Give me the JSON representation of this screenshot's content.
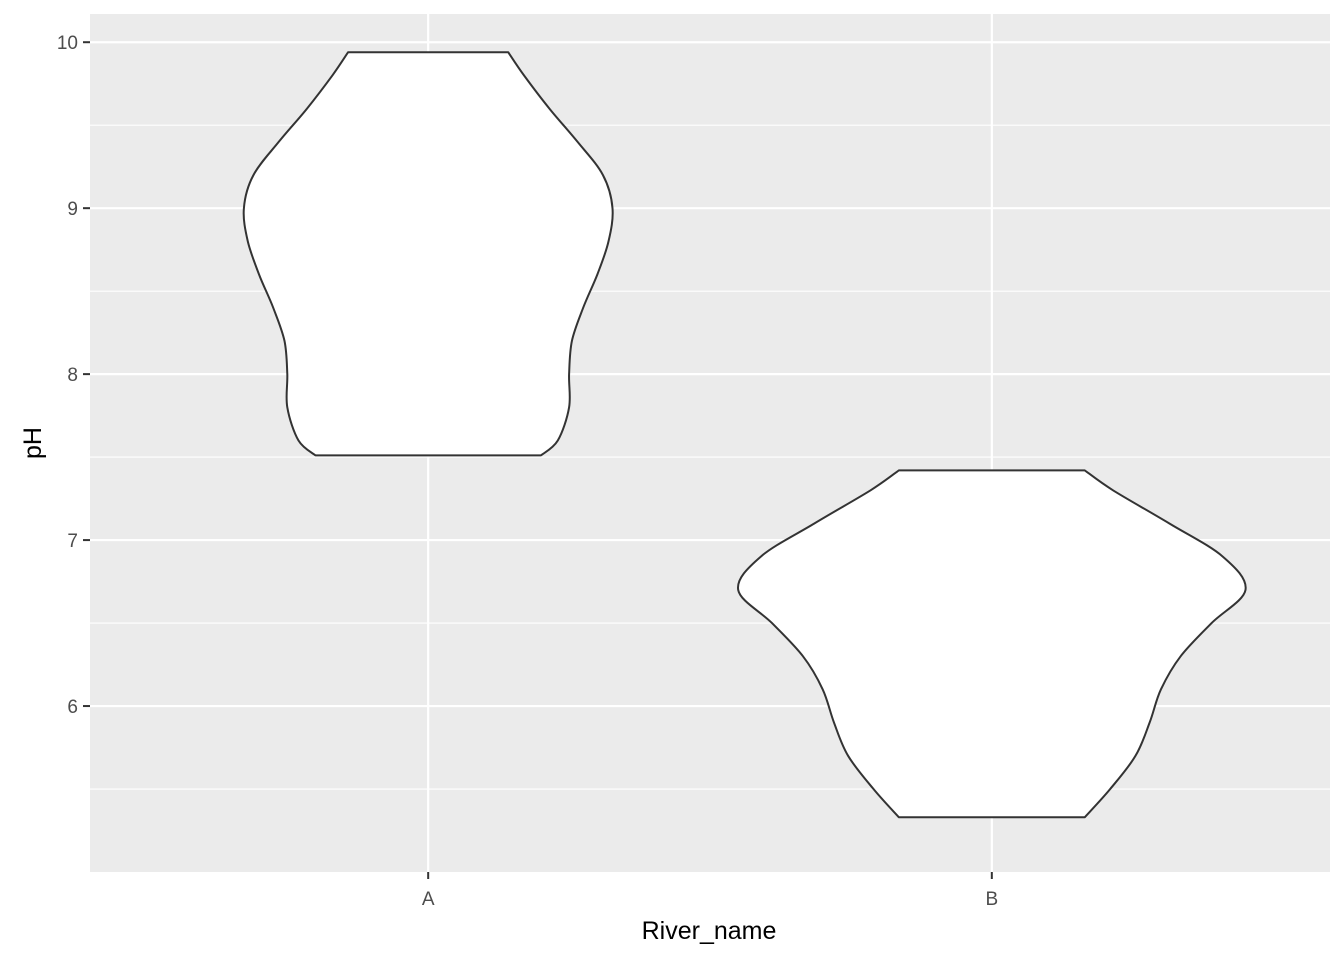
{
  "chart_data": {
    "type": "violin",
    "title": "",
    "xlabel": "River_name",
    "ylabel": "pH",
    "categories": [
      "A",
      "B"
    ],
    "ylim": [
      5.0,
      10.17
    ],
    "yticks": [
      6,
      7,
      8,
      9,
      10
    ],
    "grid": true,
    "legend": "none",
    "colors": {
      "panel_background": "#EBEBEB",
      "grid_line": "#FFFFFF",
      "violin_fill": "#FFFFFF",
      "violin_outline": "#333333",
      "tick_text": "#4D4D4D",
      "title_text": "#000000"
    },
    "violins": [
      {
        "category": "A",
        "min": 7.51,
        "max": 9.94,
        "profile": [
          {
            "y": 7.51,
            "half_width": 0.2
          },
          {
            "y": 7.6,
            "half_width": 0.23
          },
          {
            "y": 7.8,
            "half_width": 0.25
          },
          {
            "y": 8.0,
            "half_width": 0.25
          },
          {
            "y": 8.2,
            "half_width": 0.255
          },
          {
            "y": 8.4,
            "half_width": 0.275
          },
          {
            "y": 8.6,
            "half_width": 0.3
          },
          {
            "y": 8.8,
            "half_width": 0.32
          },
          {
            "y": 9.0,
            "half_width": 0.327
          },
          {
            "y": 9.2,
            "half_width": 0.31
          },
          {
            "y": 9.4,
            "half_width": 0.265
          },
          {
            "y": 9.6,
            "half_width": 0.215
          },
          {
            "y": 9.8,
            "half_width": 0.17
          },
          {
            "y": 9.94,
            "half_width": 0.142
          }
        ]
      },
      {
        "category": "B",
        "min": 5.33,
        "max": 7.42,
        "profile": [
          {
            "y": 5.33,
            "half_width": 0.165
          },
          {
            "y": 5.5,
            "half_width": 0.21
          },
          {
            "y": 5.7,
            "half_width": 0.255
          },
          {
            "y": 5.9,
            "half_width": 0.28
          },
          {
            "y": 6.1,
            "half_width": 0.3
          },
          {
            "y": 6.3,
            "half_width": 0.335
          },
          {
            "y": 6.5,
            "half_width": 0.39
          },
          {
            "y": 6.7,
            "half_width": 0.45
          },
          {
            "y": 6.9,
            "half_width": 0.41
          },
          {
            "y": 7.1,
            "half_width": 0.315
          },
          {
            "y": 7.3,
            "half_width": 0.215
          },
          {
            "y": 7.42,
            "half_width": 0.165
          }
        ]
      }
    ]
  }
}
